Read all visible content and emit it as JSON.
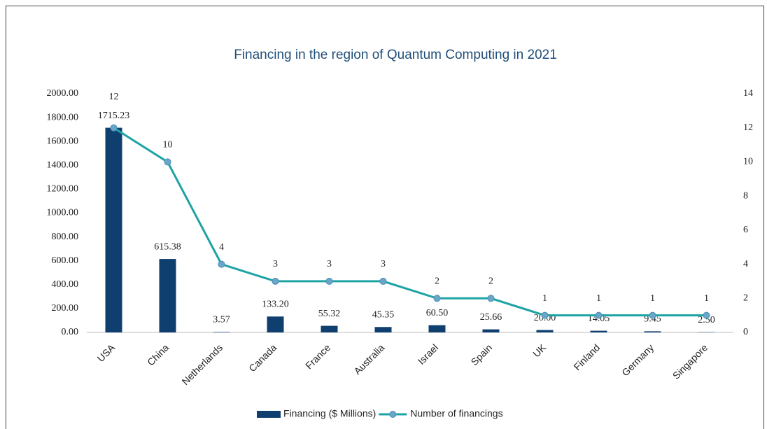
{
  "chart_data": {
    "type": "combo",
    "title": "Financing in the region of Quantum Computing in 2021",
    "categories": [
      "USA",
      "China",
      "Netherlands",
      "Canada",
      "France",
      "Australia",
      "Israel",
      "Spain",
      "UK",
      "Finland",
      "Germany",
      "Singapore"
    ],
    "series": [
      {
        "name": "Financing ($ Millions)",
        "type": "bar",
        "color": "#0f3f6e",
        "values": [
          1715.23,
          615.38,
          3.57,
          133.2,
          55.32,
          45.35,
          60.5,
          25.66,
          20,
          14.05,
          9.45,
          2.5
        ],
        "value_labels": [
          "1715.23",
          "615.38",
          "3.57",
          "133.20",
          "55.32",
          "45.35",
          "60.50",
          "25.66",
          "20.00",
          "14.05",
          "9.45",
          "2.50"
        ]
      },
      {
        "name": "Number of financings",
        "type": "line",
        "axis": "y2",
        "color": "#1ea3a5",
        "marker_color": "#6aa6c8",
        "values": [
          12,
          10,
          4,
          3,
          3,
          3,
          2,
          2,
          1,
          1,
          1,
          1
        ]
      }
    ],
    "ylim": [
      0,
      2000
    ],
    "yticks": [
      {
        "value": 0,
        "label": "0.00"
      },
      {
        "value": 200,
        "label": "200.00"
      },
      {
        "value": 400,
        "label": "400.00"
      },
      {
        "value": 600,
        "label": "600.00"
      },
      {
        "value": 800,
        "label": "800.00"
      },
      {
        "value": 1000,
        "label": "1000.00"
      },
      {
        "value": 1200,
        "label": "1200.00"
      },
      {
        "value": 1400,
        "label": "1400.00"
      },
      {
        "value": 1600,
        "label": "1600.00"
      },
      {
        "value": 1800,
        "label": "1800.00"
      },
      {
        "value": 2000,
        "label": "2000.00"
      }
    ],
    "y2lim": [
      0,
      14
    ],
    "y2ticks": [
      0,
      2,
      4,
      6,
      8,
      10,
      12,
      14
    ],
    "grid": false,
    "legend": "bottom"
  }
}
